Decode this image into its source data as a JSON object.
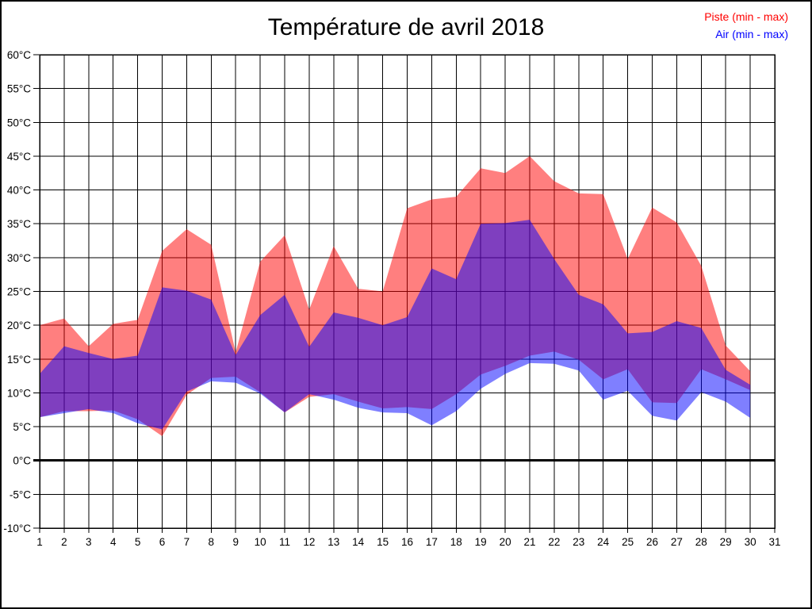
{
  "page": {
    "title": "Température de avril 2018"
  },
  "legend": [
    {
      "label": "Piste (min - max)",
      "color": "#ff0000"
    },
    {
      "label": "Air (min - max)",
      "color": "#0000ff"
    }
  ],
  "chart_data": {
    "type": "area",
    "title": "Température de avril 2018",
    "xlabel": "",
    "ylabel": "",
    "y_unit": "°C",
    "ylim": [
      -10,
      60
    ],
    "y_tick_step": 5,
    "y_tick_values": [
      60,
      55,
      50,
      45,
      40,
      35,
      30,
      25,
      20,
      15,
      10,
      5,
      0,
      -5,
      -10
    ],
    "y_tick_labels": [
      "60°C",
      "55°C",
      "50°C",
      "45°C",
      "40°C",
      "35°C",
      "30°C",
      "25°C",
      "20°C",
      "15°C",
      "10°C",
      "5°C",
      "0°C",
      "-5°C",
      "-10°C"
    ],
    "x_axis": {
      "min": 1,
      "max": 31
    },
    "x_tick_labels": [
      "1",
      "2",
      "3",
      "4",
      "5",
      "6",
      "7",
      "8",
      "9",
      "10",
      "11",
      "12",
      "13",
      "14",
      "15",
      "16",
      "17",
      "18",
      "19",
      "20",
      "21",
      "22",
      "23",
      "24",
      "25",
      "26",
      "27",
      "28",
      "29",
      "30",
      "31"
    ],
    "grid": true,
    "zero_line": true,
    "legend_position": "top-right",
    "x": [
      1,
      2,
      3,
      4,
      5,
      6,
      7,
      8,
      9,
      10,
      11,
      12,
      13,
      14,
      15,
      16,
      17,
      18,
      19,
      20,
      21,
      22,
      23,
      24,
      25,
      26,
      27,
      28,
      29,
      30
    ],
    "series": [
      {
        "name": "Piste (min - max)",
        "color": "#ff0000",
        "fill": "rgba(255,0,0,0.5)",
        "max": [
          20.0,
          21.0,
          16.9,
          20.2,
          20.8,
          31.0,
          34.2,
          31.9,
          16.0,
          29.4,
          33.3,
          22.3,
          31.7,
          25.4,
          25.0,
          37.3,
          38.6,
          39.0,
          43.2,
          42.5,
          45.0,
          41.3,
          39.5,
          39.4,
          29.8,
          37.4,
          35.2,
          28.8,
          17.0,
          13.2
        ],
        "min": [
          6.4,
          7.3,
          7.3,
          7.4,
          6.1,
          3.6,
          9.7,
          12.2,
          12.4,
          10.1,
          7.1,
          9.4,
          9.8,
          8.7,
          7.7,
          7.9,
          7.6,
          9.8,
          12.7,
          14.0,
          15.5,
          16.1,
          14.9,
          12.0,
          13.5,
          8.6,
          8.5,
          13.5,
          12.0,
          10.4
        ]
      },
      {
        "name": "Air (min - max)",
        "color": "#0000ff",
        "fill": "rgba(0,0,255,0.5)",
        "max": [
          12.8,
          16.9,
          15.9,
          15.0,
          15.5,
          25.6,
          25.1,
          23.8,
          15.6,
          21.5,
          24.5,
          16.8,
          21.9,
          21.1,
          20.0,
          21.2,
          28.4,
          26.8,
          35.0,
          35.1,
          35.6,
          29.8,
          24.5,
          23.1,
          18.8,
          19.0,
          20.6,
          19.6,
          13.4,
          11.2
        ],
        "min": [
          6.4,
          7.0,
          7.6,
          7.0,
          5.5,
          4.6,
          10.2,
          11.7,
          11.5,
          9.9,
          7.1,
          9.8,
          9.0,
          7.8,
          7.1,
          7.0,
          5.2,
          7.3,
          10.6,
          12.8,
          14.4,
          14.3,
          13.3,
          9.0,
          10.3,
          6.6,
          5.9,
          10.1,
          8.7,
          6.3
        ]
      }
    ]
  }
}
